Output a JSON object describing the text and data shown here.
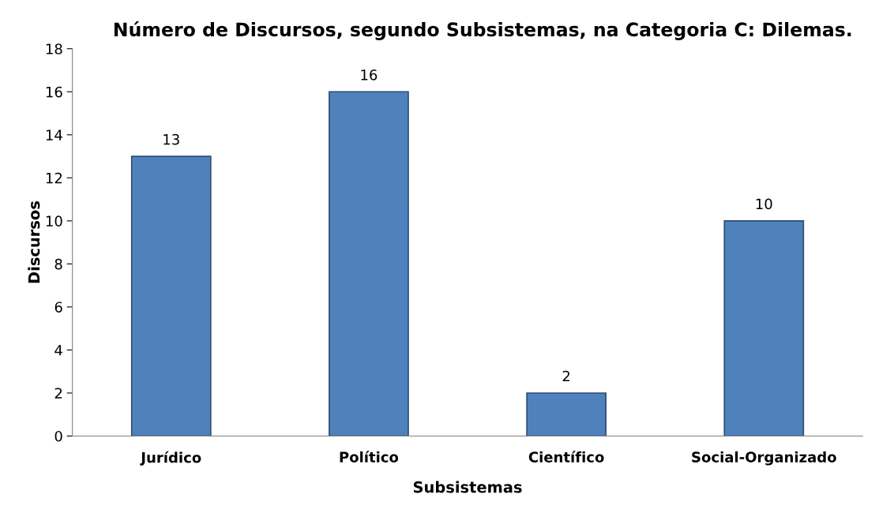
{
  "chart_data": {
    "type": "bar",
    "title": "Número de Discursos, segundo Subsistemas, na Categoria C: Dilemas.",
    "xlabel": "Subsistemas",
    "ylabel": "Discursos",
    "categories": [
      "Jurídico",
      "Político",
      "Científico",
      "Social-Organizado"
    ],
    "values": [
      13,
      16,
      2,
      10
    ],
    "color": "#4f81bd",
    "ylim": [
      0,
      18
    ],
    "yticks": [
      0,
      2,
      4,
      6,
      8,
      10,
      12,
      14,
      16,
      18
    ],
    "data_labels": true,
    "grid": false
  }
}
